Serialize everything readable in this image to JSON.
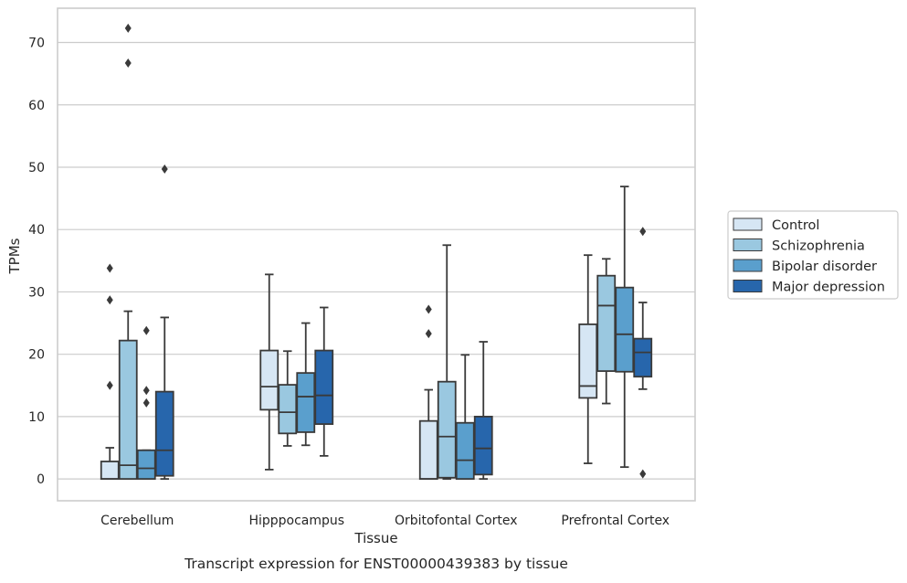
{
  "caption": "Transcript expression for ENST00000439383 by tissue",
  "chart_data": {
    "type": "box",
    "xlabel": "Tissue",
    "ylabel": "TPMs",
    "ylim": [
      -3.5,
      75.5
    ],
    "yticks": [
      0,
      10,
      20,
      30,
      40,
      50,
      60,
      70
    ],
    "grid": "horizontal",
    "legend_placement": "right-center",
    "categories": [
      "Cerebellum",
      "Hipppocampus",
      "Orbitofontal Cortex",
      "Prefrontal Cortex"
    ],
    "series": [
      {
        "name": "Control",
        "color": "#d6e6f4",
        "boxes": [
          {
            "whisker_low": 0,
            "q1": 0,
            "median": 0,
            "q3": 2.8,
            "whisker_high": 5.0,
            "outliers": [
              15.0,
              28.7,
              33.8
            ]
          },
          {
            "whisker_low": 1.5,
            "q1": 11.1,
            "median": 14.8,
            "q3": 20.6,
            "whisker_high": 32.8,
            "outliers": []
          },
          {
            "whisker_low": 0,
            "q1": 0,
            "median": 0,
            "q3": 9.3,
            "whisker_high": 14.3,
            "outliers": [
              23.3,
              27.2
            ]
          },
          {
            "whisker_low": 2.5,
            "q1": 13.0,
            "median": 14.9,
            "q3": 24.8,
            "whisker_high": 35.9,
            "outliers": []
          }
        ]
      },
      {
        "name": "Schizophrenia",
        "color": "#9ac8e0",
        "boxes": [
          {
            "whisker_low": 0,
            "q1": 0,
            "median": 2.2,
            "q3": 22.2,
            "whisker_high": 26.9,
            "outliers": [
              66.7,
              72.3
            ]
          },
          {
            "whisker_low": 5.3,
            "q1": 7.3,
            "median": 10.7,
            "q3": 15.1,
            "whisker_high": 20.5,
            "outliers": []
          },
          {
            "whisker_low": 0,
            "q1": 0.2,
            "median": 6.8,
            "q3": 15.6,
            "whisker_high": 37.5,
            "outliers": []
          },
          {
            "whisker_low": 12.1,
            "q1": 17.3,
            "median": 27.8,
            "q3": 32.6,
            "whisker_high": 35.3,
            "outliers": []
          }
        ]
      },
      {
        "name": "Bipolar disorder",
        "color": "#5a9fcd",
        "boxes": [
          {
            "whisker_low": 0,
            "q1": 0,
            "median": 1.7,
            "q3": 4.6,
            "whisker_high": 4.6,
            "outliers": [
              12.2,
              14.2,
              23.8
            ]
          },
          {
            "whisker_low": 5.4,
            "q1": 7.5,
            "median": 13.2,
            "q3": 17.0,
            "whisker_high": 25.0,
            "outliers": []
          },
          {
            "whisker_low": 0,
            "q1": 0,
            "median": 3.0,
            "q3": 9.0,
            "whisker_high": 19.9,
            "outliers": []
          },
          {
            "whisker_low": 1.9,
            "q1": 17.2,
            "median": 23.2,
            "q3": 30.7,
            "whisker_high": 46.9,
            "outliers": []
          }
        ]
      },
      {
        "name": "Major depression",
        "color": "#2766ac",
        "boxes": [
          {
            "whisker_low": 0,
            "q1": 0.5,
            "median": 4.6,
            "q3": 14.0,
            "whisker_high": 25.9,
            "outliers": [
              49.7
            ]
          },
          {
            "whisker_low": 3.7,
            "q1": 8.8,
            "median": 13.4,
            "q3": 20.6,
            "whisker_high": 27.5,
            "outliers": []
          },
          {
            "whisker_low": 0,
            "q1": 0.7,
            "median": 4.9,
            "q3": 10.0,
            "whisker_high": 22.0,
            "outliers": []
          },
          {
            "whisker_low": 14.4,
            "q1": 16.4,
            "median": 20.3,
            "q3": 22.5,
            "whisker_high": 28.3,
            "outliers": [
              0.8,
              39.7
            ]
          }
        ]
      }
    ]
  }
}
